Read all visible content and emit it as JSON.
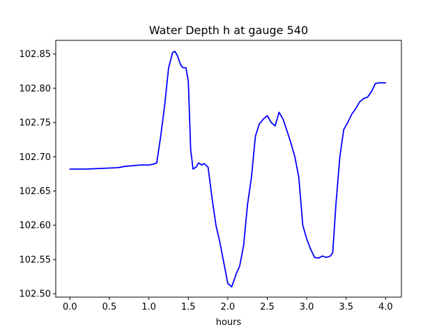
{
  "chart_data": {
    "type": "line",
    "title": "Water Depth h at gauge 540",
    "xlabel": "hours",
    "ylabel": "",
    "xlim": [
      -0.18,
      4.2
    ],
    "ylim": [
      102.495,
      102.87
    ],
    "grid": false,
    "xticks": [
      0.0,
      0.5,
      1.0,
      1.5,
      2.0,
      2.5,
      3.0,
      3.5,
      4.0
    ],
    "xtick_labels": [
      "0.0",
      "0.5",
      "1.0",
      "1.5",
      "2.0",
      "2.5",
      "3.0",
      "3.5",
      "4.0"
    ],
    "yticks": [
      102.5,
      102.55,
      102.6,
      102.65,
      102.7,
      102.75,
      102.8,
      102.85
    ],
    "ytick_labels": [
      "102.50",
      "102.55",
      "102.60",
      "102.65",
      "102.70",
      "102.75",
      "102.80",
      "102.85"
    ],
    "series": [
      {
        "color": "#0000ff",
        "x": [
          0.0,
          0.2,
          0.4,
          0.6,
          0.7,
          0.9,
          1.0,
          1.05,
          1.1,
          1.15,
          1.2,
          1.25,
          1.3,
          1.33,
          1.36,
          1.4,
          1.43,
          1.47,
          1.5,
          1.53,
          1.56,
          1.6,
          1.63,
          1.67,
          1.7,
          1.75,
          1.8,
          1.85,
          1.9,
          1.95,
          2.0,
          2.05,
          2.08,
          2.11,
          2.15,
          2.2,
          2.25,
          2.3,
          2.35,
          2.4,
          2.45,
          2.5,
          2.55,
          2.6,
          2.65,
          2.7,
          2.75,
          2.8,
          2.85,
          2.9,
          2.95,
          3.0,
          3.05,
          3.1,
          3.15,
          3.2,
          3.25,
          3.3,
          3.33,
          3.37,
          3.42,
          3.47,
          3.52,
          3.57,
          3.62,
          3.67,
          3.72,
          3.77,
          3.82,
          3.87,
          3.92,
          3.97,
          4.0
        ],
        "y": [
          102.682,
          102.682,
          102.683,
          102.684,
          102.686,
          102.688,
          102.688,
          102.689,
          102.691,
          102.73,
          102.775,
          102.83,
          102.852,
          102.854,
          102.848,
          102.835,
          102.83,
          102.83,
          102.81,
          102.71,
          102.682,
          102.685,
          102.691,
          102.688,
          102.69,
          102.685,
          102.64,
          102.6,
          102.575,
          102.545,
          102.515,
          102.51,
          102.52,
          102.53,
          102.54,
          102.57,
          102.63,
          102.67,
          102.73,
          102.748,
          102.755,
          102.76,
          102.75,
          102.745,
          102.765,
          102.755,
          102.738,
          102.72,
          102.7,
          102.67,
          102.6,
          102.58,
          102.565,
          102.553,
          102.552,
          102.555,
          102.553,
          102.555,
          102.56,
          102.63,
          102.7,
          102.74,
          102.75,
          102.762,
          102.77,
          102.78,
          102.785,
          102.787,
          102.795,
          102.807,
          102.808,
          102.808,
          102.808
        ]
      }
    ]
  }
}
